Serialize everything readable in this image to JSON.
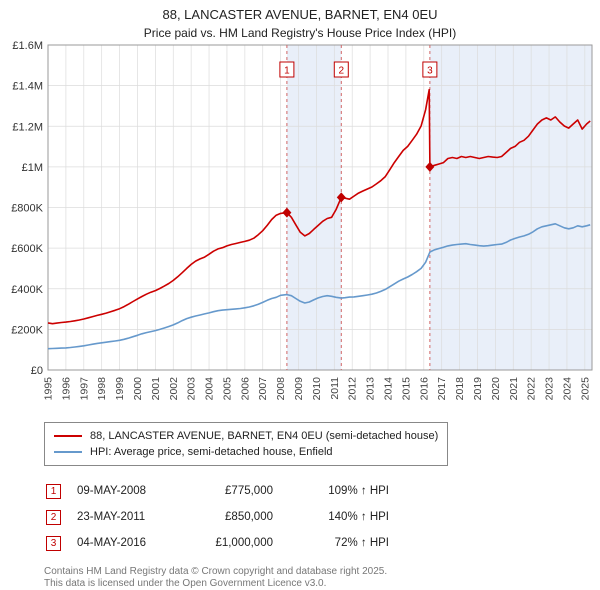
{
  "title": "88, LANCASTER AVENUE, BARNET, EN4 0EU",
  "subtitle": "Price paid vs. HM Land Registry's House Price Index (HPI)",
  "accent_color": "#c00000",
  "chart_data": {
    "type": "line",
    "y_unit": "GBP thousands",
    "xlim": [
      1995,
      2025.4
    ],
    "ylim": [
      0,
      1600
    ],
    "yticks": [
      0,
      200,
      400,
      600,
      800,
      1000,
      1200,
      1400,
      1600
    ],
    "ytick_labels": [
      "£0",
      "£200K",
      "£400K",
      "£600K",
      "£800K",
      "£1M",
      "£1.2M",
      "£1.4M",
      "£1.6M"
    ],
    "xticks": [
      1995,
      1996,
      1997,
      1998,
      1999,
      2000,
      2001,
      2002,
      2003,
      2004,
      2005,
      2006,
      2007,
      2008,
      2009,
      2010,
      2011,
      2012,
      2013,
      2014,
      2015,
      2016,
      2017,
      2018,
      2019,
      2020,
      2021,
      2022,
      2023,
      2024,
      2025
    ],
    "grid": true,
    "legend_position": "bottom-left",
    "band_color": "#e9eff9",
    "grid_color": "#dcdcdc",
    "border_color": "#9a9a9a",
    "dashed_line_color": "#d06666",
    "shaded_spans": [
      [
        2008.35,
        2011.39
      ],
      [
        2016.34,
        2025.4
      ]
    ],
    "markers": [
      {
        "label": "1",
        "x": 2008.35,
        "y": 775
      },
      {
        "label": "2",
        "x": 2011.39,
        "y": 850
      },
      {
        "label": "3",
        "x": 2016.34,
        "y": 1000
      }
    ],
    "series": [
      {
        "name": "88, LANCASTER AVENUE, BARNET, EN4 0EU (semi-detached house)",
        "color": "#cc0000",
        "points": [
          [
            1995,
            232
          ],
          [
            1995.25,
            228
          ],
          [
            1995.5,
            231
          ],
          [
            1995.75,
            234
          ],
          [
            1996,
            236
          ],
          [
            1996.25,
            239
          ],
          [
            1996.5,
            242
          ],
          [
            1996.75,
            246
          ],
          [
            1997,
            251
          ],
          [
            1997.25,
            257
          ],
          [
            1997.5,
            263
          ],
          [
            1997.75,
            269
          ],
          [
            1998,
            274
          ],
          [
            1998.25,
            280
          ],
          [
            1998.5,
            287
          ],
          [
            1998.75,
            294
          ],
          [
            1999,
            302
          ],
          [
            1999.25,
            312
          ],
          [
            1999.5,
            324
          ],
          [
            1999.75,
            337
          ],
          [
            2000,
            350
          ],
          [
            2000.25,
            362
          ],
          [
            2000.5,
            373
          ],
          [
            2000.75,
            383
          ],
          [
            2001,
            391
          ],
          [
            2001.25,
            401
          ],
          [
            2001.5,
            413
          ],
          [
            2001.75,
            426
          ],
          [
            2002,
            441
          ],
          [
            2002.25,
            459
          ],
          [
            2002.5,
            479
          ],
          [
            2002.75,
            500
          ],
          [
            2003,
            520
          ],
          [
            2003.25,
            536
          ],
          [
            2003.5,
            547
          ],
          [
            2003.75,
            556
          ],
          [
            2004,
            570
          ],
          [
            2004.25,
            585
          ],
          [
            2004.5,
            596
          ],
          [
            2004.75,
            602
          ],
          [
            2005,
            611
          ],
          [
            2005.25,
            618
          ],
          [
            2005.5,
            623
          ],
          [
            2005.75,
            628
          ],
          [
            2006,
            633
          ],
          [
            2006.25,
            639
          ],
          [
            2006.5,
            649
          ],
          [
            2006.75,
            666
          ],
          [
            2007,
            686
          ],
          [
            2007.25,
            712
          ],
          [
            2007.5,
            741
          ],
          [
            2007.75,
            762
          ],
          [
            2008,
            771
          ],
          [
            2008.35,
            775
          ],
          [
            2008.6,
            752
          ],
          [
            2008.85,
            715
          ],
          [
            2009.1,
            678
          ],
          [
            2009.35,
            660
          ],
          [
            2009.6,
            672
          ],
          [
            2009.85,
            692
          ],
          [
            2010.1,
            712
          ],
          [
            2010.35,
            732
          ],
          [
            2010.6,
            746
          ],
          [
            2010.85,
            752
          ],
          [
            2011.1,
            790
          ],
          [
            2011.39,
            850
          ],
          [
            2011.6,
            846
          ],
          [
            2011.85,
            841
          ],
          [
            2012.1,
            856
          ],
          [
            2012.35,
            871
          ],
          [
            2012.6,
            881
          ],
          [
            2012.85,
            891
          ],
          [
            2013.1,
            901
          ],
          [
            2013.35,
            916
          ],
          [
            2013.6,
            932
          ],
          [
            2013.85,
            952
          ],
          [
            2014.1,
            986
          ],
          [
            2014.35,
            1021
          ],
          [
            2014.6,
            1051
          ],
          [
            2014.85,
            1081
          ],
          [
            2015.1,
            1101
          ],
          [
            2015.35,
            1131
          ],
          [
            2015.6,
            1161
          ],
          [
            2015.85,
            1201
          ],
          [
            2016.1,
            1281
          ],
          [
            2016.3,
            1380
          ],
          [
            2016.34,
            1000
          ],
          [
            2016.6,
            1008
          ],
          [
            2016.85,
            1014
          ],
          [
            2017.1,
            1021
          ],
          [
            2017.35,
            1041
          ],
          [
            2017.6,
            1046
          ],
          [
            2017.85,
            1041
          ],
          [
            2018.1,
            1051
          ],
          [
            2018.35,
            1046
          ],
          [
            2018.6,
            1051
          ],
          [
            2018.85,
            1046
          ],
          [
            2019.1,
            1041
          ],
          [
            2019.35,
            1046
          ],
          [
            2019.6,
            1051
          ],
          [
            2019.85,
            1048
          ],
          [
            2020.1,
            1046
          ],
          [
            2020.35,
            1051
          ],
          [
            2020.6,
            1071
          ],
          [
            2020.85,
            1091
          ],
          [
            2021.1,
            1101
          ],
          [
            2021.35,
            1121
          ],
          [
            2021.6,
            1131
          ],
          [
            2021.85,
            1151
          ],
          [
            2022.1,
            1181
          ],
          [
            2022.35,
            1211
          ],
          [
            2022.6,
            1231
          ],
          [
            2022.85,
            1241
          ],
          [
            2023.1,
            1231
          ],
          [
            2023.35,
            1246
          ],
          [
            2023.6,
            1221
          ],
          [
            2023.85,
            1201
          ],
          [
            2024.1,
            1191
          ],
          [
            2024.35,
            1211
          ],
          [
            2024.6,
            1231
          ],
          [
            2024.85,
            1186
          ],
          [
            2025.1,
            1211
          ],
          [
            2025.3,
            1226
          ]
        ]
      },
      {
        "name": "HPI: Average price, semi-detached house, Enfield",
        "color": "#6699cc",
        "points": [
          [
            1995,
            105
          ],
          [
            1995.25,
            106
          ],
          [
            1995.5,
            107
          ],
          [
            1995.75,
            108
          ],
          [
            1996,
            109
          ],
          [
            1996.25,
            111
          ],
          [
            1996.5,
            113
          ],
          [
            1996.75,
            116
          ],
          [
            1997,
            119
          ],
          [
            1997.25,
            123
          ],
          [
            1997.5,
            127
          ],
          [
            1997.75,
            131
          ],
          [
            1998,
            134
          ],
          [
            1998.25,
            137
          ],
          [
            1998.5,
            140
          ],
          [
            1998.75,
            143
          ],
          [
            1999,
            146
          ],
          [
            1999.25,
            151
          ],
          [
            1999.5,
            157
          ],
          [
            1999.75,
            164
          ],
          [
            2000,
            171
          ],
          [
            2000.25,
            178
          ],
          [
            2000.5,
            184
          ],
          [
            2000.75,
            189
          ],
          [
            2001,
            194
          ],
          [
            2001.25,
            200
          ],
          [
            2001.5,
            207
          ],
          [
            2001.75,
            214
          ],
          [
            2002,
            222
          ],
          [
            2002.25,
            232
          ],
          [
            2002.5,
            243
          ],
          [
            2002.75,
            253
          ],
          [
            2003,
            260
          ],
          [
            2003.25,
            266
          ],
          [
            2003.5,
            271
          ],
          [
            2003.75,
            276
          ],
          [
            2004,
            281
          ],
          [
            2004.25,
            287
          ],
          [
            2004.5,
            292
          ],
          [
            2004.75,
            295
          ],
          [
            2005,
            297
          ],
          [
            2005.25,
            299
          ],
          [
            2005.5,
            301
          ],
          [
            2005.75,
            303
          ],
          [
            2006,
            306
          ],
          [
            2006.25,
            310
          ],
          [
            2006.5,
            316
          ],
          [
            2006.75,
            324
          ],
          [
            2007,
            333
          ],
          [
            2007.25,
            343
          ],
          [
            2007.5,
            352
          ],
          [
            2007.75,
            358
          ],
          [
            2008,
            368
          ],
          [
            2008.35,
            371
          ],
          [
            2008.6,
            366
          ],
          [
            2008.85,
            352
          ],
          [
            2009.1,
            338
          ],
          [
            2009.35,
            330
          ],
          [
            2009.6,
            335
          ],
          [
            2009.85,
            345
          ],
          [
            2010.1,
            355
          ],
          [
            2010.35,
            362
          ],
          [
            2010.6,
            366
          ],
          [
            2010.85,
            363
          ],
          [
            2011.1,
            358
          ],
          [
            2011.39,
            354
          ],
          [
            2011.6,
            356
          ],
          [
            2011.85,
            359
          ],
          [
            2012.1,
            360
          ],
          [
            2012.35,
            363
          ],
          [
            2012.6,
            366
          ],
          [
            2012.85,
            369
          ],
          [
            2013.1,
            373
          ],
          [
            2013.35,
            379
          ],
          [
            2013.6,
            387
          ],
          [
            2013.85,
            397
          ],
          [
            2014.1,
            410
          ],
          [
            2014.35,
            424
          ],
          [
            2014.6,
            437
          ],
          [
            2014.85,
            448
          ],
          [
            2015.1,
            458
          ],
          [
            2015.35,
            470
          ],
          [
            2015.6,
            484
          ],
          [
            2015.85,
            500
          ],
          [
            2016.1,
            530
          ],
          [
            2016.34,
            581
          ],
          [
            2016.6,
            592
          ],
          [
            2016.85,
            598
          ],
          [
            2017.1,
            604
          ],
          [
            2017.35,
            611
          ],
          [
            2017.6,
            615
          ],
          [
            2017.85,
            618
          ],
          [
            2018.1,
            620
          ],
          [
            2018.35,
            622
          ],
          [
            2018.6,
            618
          ],
          [
            2018.85,
            615
          ],
          [
            2019.1,
            612
          ],
          [
            2019.35,
            610
          ],
          [
            2019.6,
            612
          ],
          [
            2019.85,
            615
          ],
          [
            2020.1,
            618
          ],
          [
            2020.35,
            620
          ],
          [
            2020.6,
            628
          ],
          [
            2020.85,
            640
          ],
          [
            2021.1,
            648
          ],
          [
            2021.35,
            655
          ],
          [
            2021.6,
            660
          ],
          [
            2021.85,
            668
          ],
          [
            2022.1,
            680
          ],
          [
            2022.35,
            695
          ],
          [
            2022.6,
            705
          ],
          [
            2022.85,
            710
          ],
          [
            2023.1,
            715
          ],
          [
            2023.35,
            720
          ],
          [
            2023.6,
            710
          ],
          [
            2023.85,
            700
          ],
          [
            2024.1,
            695
          ],
          [
            2024.35,
            700
          ],
          [
            2024.6,
            710
          ],
          [
            2024.85,
            705
          ],
          [
            2025.1,
            710
          ],
          [
            2025.3,
            715
          ]
        ]
      }
    ]
  },
  "transactions": [
    {
      "num": "1",
      "date": "09-MAY-2008",
      "price": "£775,000",
      "hpi_change": "109% ↑ HPI"
    },
    {
      "num": "2",
      "date": "23-MAY-2011",
      "price": "£850,000",
      "hpi_change": "140% ↑ HPI"
    },
    {
      "num": "3",
      "date": "04-MAY-2016",
      "price": "£1,000,000",
      "hpi_change": "72% ↑ HPI"
    }
  ],
  "footer": {
    "line1": "Contains HM Land Registry data © Crown copyright and database right 2025.",
    "line2": "This data is licensed under the Open Government Licence v3.0."
  }
}
